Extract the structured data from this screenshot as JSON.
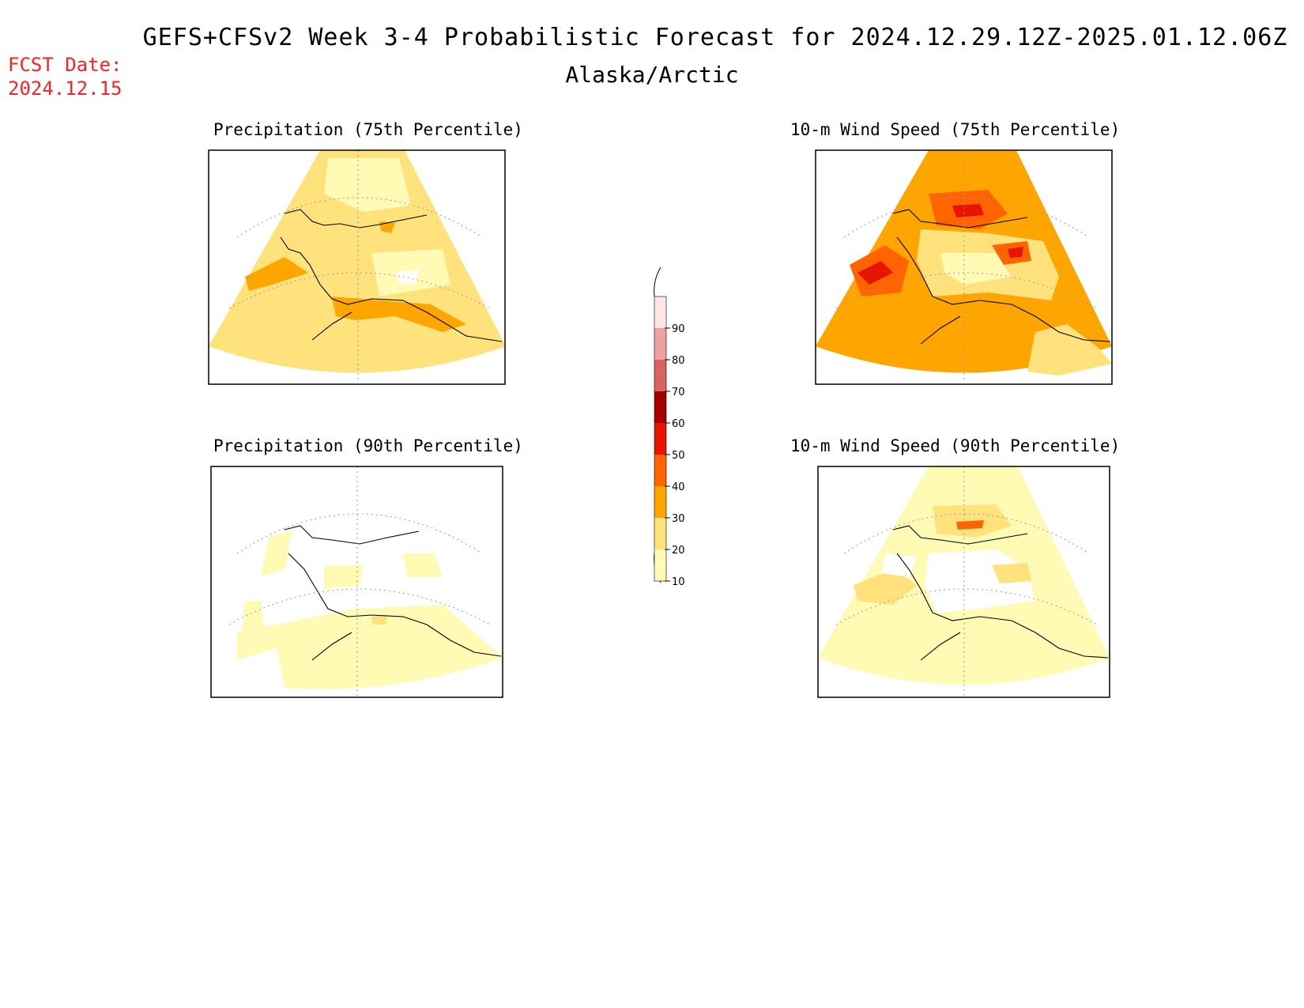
{
  "header": {
    "title": "GEFS+CFSv2 Week 3-4 Probabilistic Forecast for 2024.12.29.12Z-2025.01.12.06Z",
    "subtitle": "Alaska/Arctic",
    "fcst_label": "FCST Date:",
    "fcst_date": "2024.12.15"
  },
  "panels": [
    {
      "id": "p75",
      "title": "Precipitation (75th Percentile)"
    },
    {
      "id": "p90",
      "title": "Precipitation (90th Percentile)"
    },
    {
      "id": "w75",
      "title": "10-m Wind Speed (75th Percentile)"
    },
    {
      "id": "w90",
      "title": "10-m Wind Speed (90th Percentile)"
    }
  ],
  "colorbar": {
    "ticks": [
      "10",
      "20",
      "30",
      "40",
      "50",
      "60",
      "70",
      "80",
      "90"
    ],
    "colors": [
      "#fffab4",
      "#ffe27c",
      "#ffa500",
      "#ff6400",
      "#e61400",
      "#a50000",
      "#d76464",
      "#f0a0a0",
      "#ffe6e6"
    ]
  }
}
